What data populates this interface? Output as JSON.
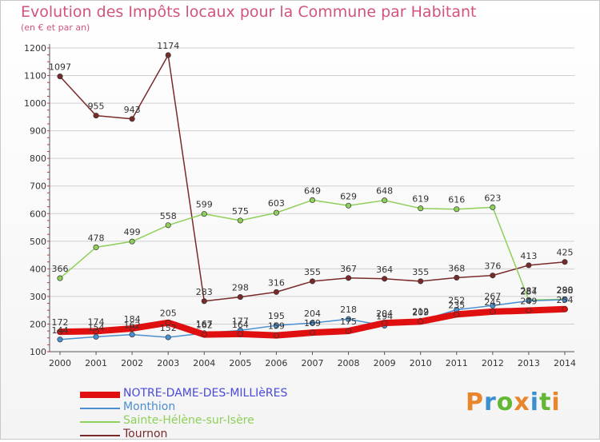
{
  "header": {
    "title": "Evolution des Impôts locaux pour la Commune par Habitant",
    "subtitle": "(en € et par an)"
  },
  "brand": {
    "text": "Proxiti",
    "colors": [
      "#e8862e",
      "#3a8fd0",
      "#62b834",
      "#e8862e",
      "#3a8fd0",
      "#62b834",
      "#e8862e"
    ]
  },
  "colors": {
    "title": "#d2547a",
    "grid": "#cfcfcf",
    "axis": "#555555"
  },
  "chart_data": {
    "type": "line",
    "title": "Evolution des Impôts locaux pour la Commune par Habitant",
    "subtitle": "(en € et par an)",
    "xlabel": "",
    "ylabel": "",
    "ylim": [
      100,
      1200
    ],
    "yticks": [
      100,
      200,
      300,
      400,
      500,
      600,
      700,
      800,
      900,
      1000,
      1100,
      1200
    ],
    "categories": [
      "2000",
      "2001",
      "2002",
      "2003",
      "2004",
      "2005",
      "2006",
      "2007",
      "2008",
      "2009",
      "2010",
      "2011",
      "2012",
      "2013",
      "2014"
    ],
    "legend_position": "bottom-left",
    "series": [
      {
        "name": "Tournon",
        "color": "#7a2a2a",
        "width": 1.5,
        "values": [
          1097,
          955,
          943,
          1174,
          283,
          298,
          316,
          355,
          367,
          364,
          355,
          368,
          376,
          413,
          425
        ]
      },
      {
        "name": "Sainte-Hélène-sur-Isère",
        "color": "#8ed05a",
        "width": 1.5,
        "values": [
          366,
          478,
          499,
          558,
          599,
          575,
          603,
          649,
          629,
          648,
          619,
          616,
          623,
          287,
          290
        ]
      },
      {
        "name": "Monthion",
        "color": "#4a8fcf",
        "width": 1.5,
        "values": [
          144,
          154,
          162,
          152,
          167,
          177,
          195,
          204,
          218,
          194,
          212,
          252,
          267,
          284,
          288
        ]
      },
      {
        "name": "NOTRE-DAME-DES-MILLIèRES",
        "color": "#e01010",
        "width": 8,
        "values": [
          172,
          174,
          184,
          205,
          162,
          164,
          159,
          169,
          175,
          204,
          209,
          235,
          245,
          249,
          254
        ]
      }
    ],
    "legend_order": [
      "NOTRE-DAME-DES-MILLIèRES",
      "Monthion",
      "Sainte-Hélène-sur-Isère",
      "Tournon"
    ]
  }
}
